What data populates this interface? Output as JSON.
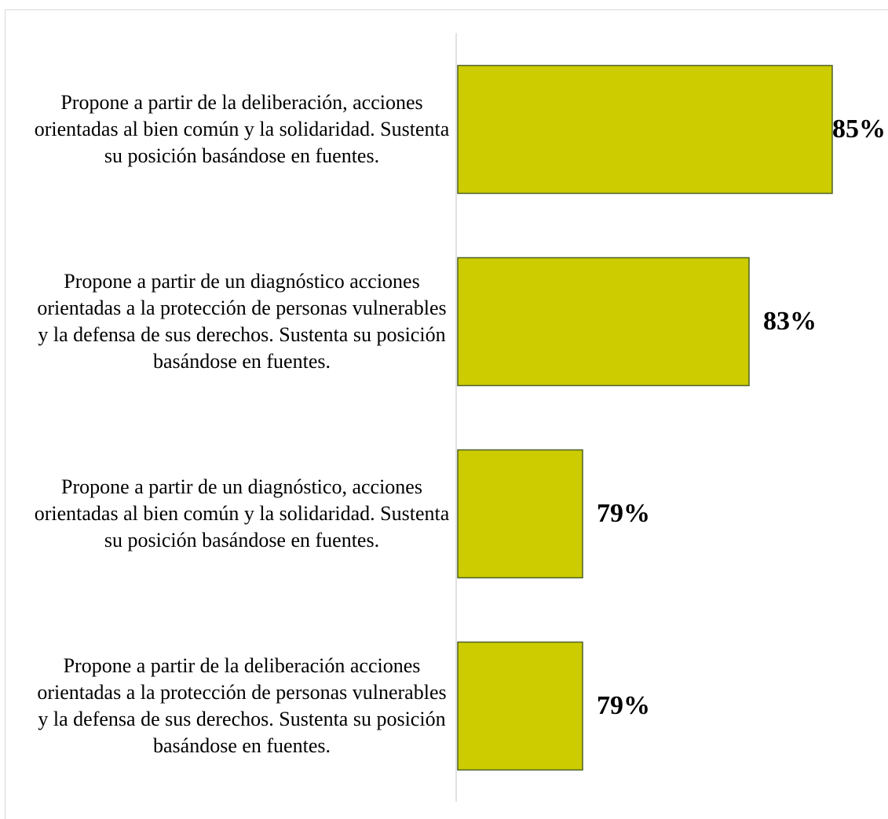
{
  "chart_data": {
    "type": "bar",
    "orientation": "horizontal",
    "categories": [
      "Propone a partir de la deliberación, acciones orientadas al bien común y la solidaridad. Sustenta su posición basándose en fuentes.",
      "Propone a partir de un diagnóstico acciones orientadas a la protección de personas vulnerables y la defensa de sus derechos. Sustenta su posición basándose en fuentes.",
      "Propone a partir de un diagnóstico, acciones orientadas al bien común y la solidaridad. Sustenta su posición basándose en fuentes.",
      "Propone a partir de la deliberación acciones orientadas a la protección de personas vulnerables y la defensa de sus derechos. Sustenta su posición basándose en fuentes."
    ],
    "values": [
      85,
      83,
      79,
      79
    ],
    "value_labels": [
      "85%",
      "83%",
      "79%",
      "79%"
    ],
    "color": "#cccc00",
    "xlim": [
      76,
      86
    ]
  }
}
